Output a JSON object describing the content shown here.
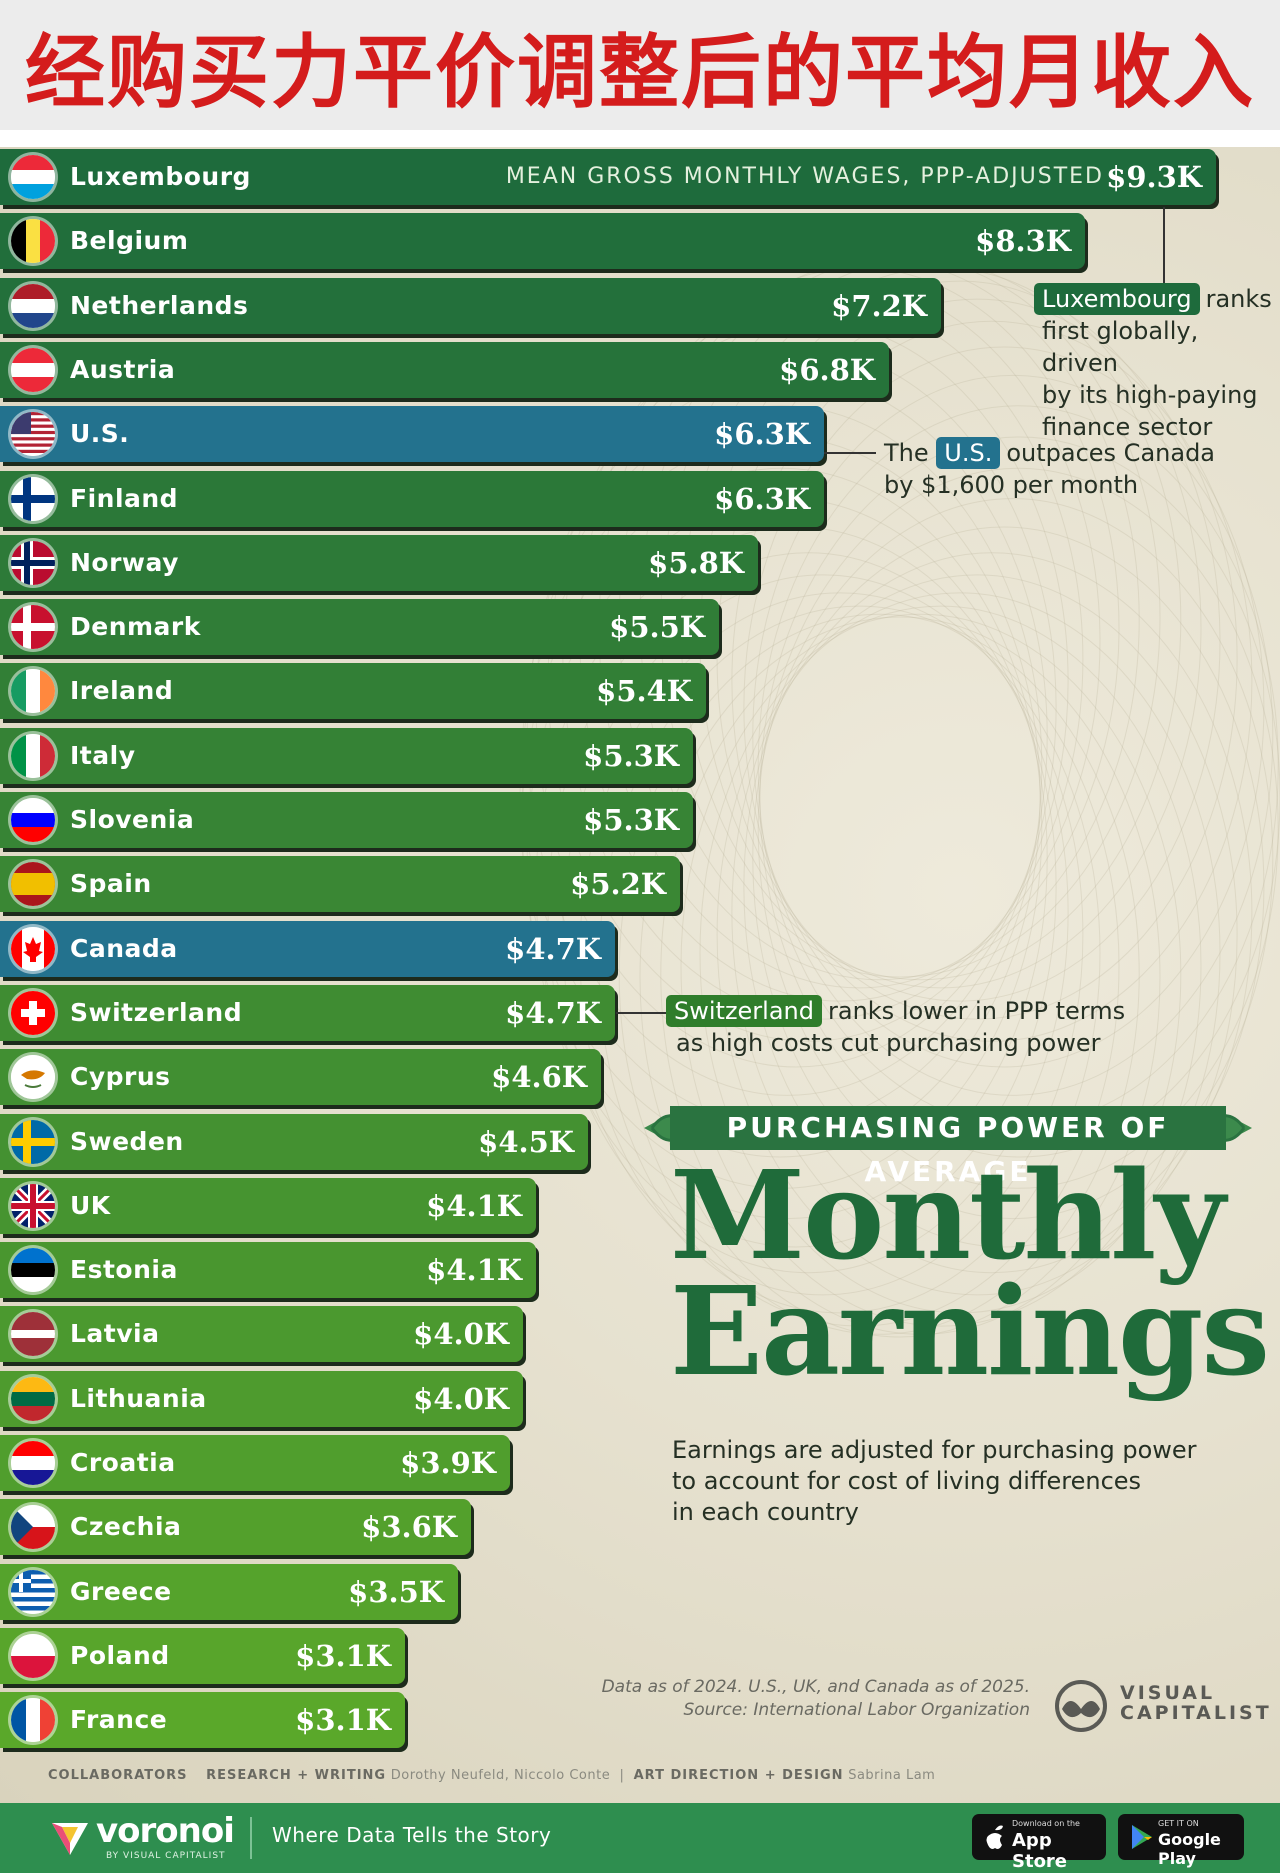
{
  "header": {
    "title": "经购买力平价调整后的平均月收入"
  },
  "chart_data": {
    "type": "bar",
    "orientation": "horizontal",
    "subtitle": "MEAN GROSS MONTHLY WAGES, PPP-ADJUSTED",
    "unit": "USD thousands",
    "categories": [
      "Luxembourg",
      "Belgium",
      "Netherlands",
      "Austria",
      "U.S.",
      "Finland",
      "Norway",
      "Denmark",
      "Ireland",
      "Italy",
      "Slovenia",
      "Spain",
      "Canada",
      "Switzerland",
      "Cyprus",
      "Sweden",
      "UK",
      "Estonia",
      "Latvia",
      "Lithuania",
      "Croatia",
      "Czechia",
      "Greece",
      "Poland",
      "France"
    ],
    "values": [
      9.3,
      8.3,
      7.2,
      6.8,
      6.3,
      6.3,
      5.8,
      5.5,
      5.4,
      5.3,
      5.3,
      5.2,
      4.7,
      4.7,
      4.6,
      4.5,
      4.1,
      4.1,
      4.0,
      4.0,
      3.9,
      3.6,
      3.5,
      3.1,
      3.1
    ],
    "labels": [
      "$9.3K",
      "$8.3K",
      "$7.2K",
      "$6.8K",
      "$6.3K",
      "$6.3K",
      "$5.8K",
      "$5.5K",
      "$5.4K",
      "$5.3K",
      "$5.3K",
      "$5.2K",
      "$4.7K",
      "$4.7K",
      "$4.6K",
      "$4.5K",
      "$4.1K",
      "$4.1K",
      "$4.0K",
      "$4.0K",
      "$3.9K",
      "$3.6K",
      "$3.5K",
      "$3.1K",
      "$3.1K"
    ],
    "highlighted": [
      "U.S.",
      "Canada"
    ],
    "colors": {
      "top": "#1e6b3c",
      "bottom": "#5aa82a",
      "highlight": "#23728e"
    }
  },
  "annotations": {
    "luxembourg": {
      "tag": "Luxembourg",
      "text": "ranks",
      "lines": [
        "first globally, driven",
        "by its high-paying",
        "finance sector"
      ]
    },
    "us": {
      "pre": "The",
      "tag": "U.S.",
      "text": "outpaces Canada",
      "line2": "by $1,600 per month"
    },
    "switzerland": {
      "tag": "Switzerland",
      "text": "ranks lower in PPP terms",
      "line2": "as high costs cut purchasing power"
    }
  },
  "headline": {
    "banner": "PURCHASING POWER OF AVERAGE",
    "line1": "Monthly",
    "line2": "Earnings"
  },
  "description": [
    "Earnings are adjusted for purchasing power",
    "to account for cost of living differences",
    "in each country"
  ],
  "source": {
    "line1": "Data as of 2024. U.S., UK, and Canada as of 2025.",
    "line2": "Source: International Labor Organization"
  },
  "brand": {
    "vc_line1": "VISUAL",
    "vc_line2": "CAPITALIST"
  },
  "credits": {
    "collaborators": "COLLABORATORS",
    "research_label": "RESEARCH + WRITING",
    "research_names": "Dorothy Neufeld, Niccolo Conte",
    "sep": "|",
    "art_label": "ART DIRECTION + DESIGN",
    "art_names": "Sabrina Lam"
  },
  "footer": {
    "brand": "voronoi",
    "brand_sub": "BY VISUAL CAPITALIST",
    "tagline": "Where Data Tells the Story",
    "appstore_small": "Download on the",
    "appstore": "App Store",
    "googleplay_small": "GET IT ON",
    "googleplay": "Google Play"
  },
  "flags": {
    "Luxembourg": {
      "type": "h3",
      "colors": [
        "#ed2939",
        "#ffffff",
        "#00a1de"
      ]
    },
    "Belgium": {
      "type": "v3",
      "colors": [
        "#000000",
        "#fae042",
        "#ed2939"
      ]
    },
    "Netherlands": {
      "type": "h3",
      "colors": [
        "#ae1c28",
        "#ffffff",
        "#21468b"
      ]
    },
    "Austria": {
      "type": "h3",
      "colors": [
        "#ed2939",
        "#ffffff",
        "#ed2939"
      ]
    },
    "U.S.": {
      "type": "us",
      "colors": [
        "#b22234",
        "#ffffff",
        "#3c3b6e"
      ]
    },
    "Finland": {
      "type": "nordic",
      "colors": [
        "#ffffff",
        "#003580"
      ]
    },
    "Norway": {
      "type": "nordic2",
      "colors": [
        "#ba0c2f",
        "#ffffff",
        "#00205b"
      ]
    },
    "Denmark": {
      "type": "nordic",
      "colors": [
        "#c8102e",
        "#ffffff"
      ]
    },
    "Ireland": {
      "type": "v3",
      "colors": [
        "#169b62",
        "#ffffff",
        "#ff883e"
      ]
    },
    "Italy": {
      "type": "v3",
      "colors": [
        "#009246",
        "#ffffff",
        "#ce2b37"
      ]
    },
    "Slovenia": {
      "type": "h3",
      "colors": [
        "#ffffff",
        "#0000ff",
        "#ff0000"
      ]
    },
    "Spain": {
      "type": "spain",
      "colors": [
        "#aa151b",
        "#f1bf00",
        "#aa151b"
      ]
    },
    "Canada": {
      "type": "canada",
      "colors": [
        "#ff0000",
        "#ffffff"
      ]
    },
    "Switzerland": {
      "type": "swiss",
      "colors": [
        "#ff0000",
        "#ffffff"
      ]
    },
    "Cyprus": {
      "type": "cyprus",
      "colors": [
        "#ffffff",
        "#d57800"
      ]
    },
    "Sweden": {
      "type": "nordic",
      "colors": [
        "#006aa7",
        "#fecc00"
      ]
    },
    "UK": {
      "type": "uk",
      "colors": [
        "#012169",
        "#ffffff",
        "#c8102e"
      ]
    },
    "Estonia": {
      "type": "h3",
      "colors": [
        "#0072ce",
        "#000000",
        "#ffffff"
      ]
    },
    "Latvia": {
      "type": "latvia",
      "colors": [
        "#9e3039",
        "#ffffff"
      ]
    },
    "Lithuania": {
      "type": "h3",
      "colors": [
        "#fdb913",
        "#006a44",
        "#c1272d"
      ]
    },
    "Croatia": {
      "type": "h3",
      "colors": [
        "#ff0000",
        "#ffffff",
        "#171796"
      ]
    },
    "Czechia": {
      "type": "czech",
      "colors": [
        "#ffffff",
        "#d7141a",
        "#11457e"
      ]
    },
    "Greece": {
      "type": "greece",
      "colors": [
        "#0d5eaf",
        "#ffffff"
      ]
    },
    "Poland": {
      "type": "h2",
      "colors": [
        "#ffffff",
        "#dc143c"
      ]
    },
    "France": {
      "type": "v3",
      "colors": [
        "#0055a4",
        "#ffffff",
        "#ef4135"
      ]
    }
  }
}
